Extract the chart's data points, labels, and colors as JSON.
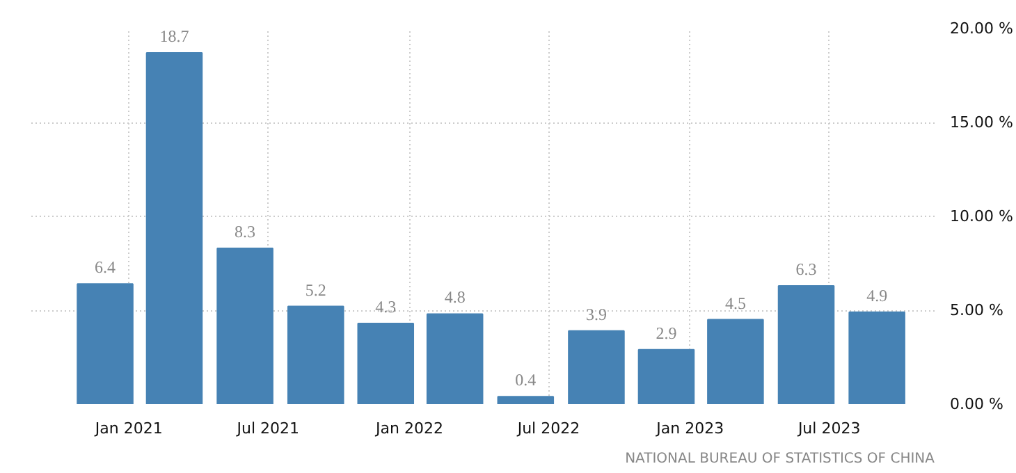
{
  "chart_data": {
    "type": "bar",
    "x": [
      "2020-12",
      "2021-03",
      "2021-06",
      "2021-09",
      "2021-12",
      "2022-03",
      "2022-06",
      "2022-09",
      "2022-12",
      "2023-03",
      "2023-06",
      "2023-09"
    ],
    "values": [
      6.4,
      18.7,
      8.3,
      5.2,
      4.3,
      4.8,
      0.4,
      3.9,
      2.9,
      4.5,
      6.3,
      4.9
    ],
    "color": "#4682b4",
    "data_labels": true,
    "xlim": [
      "2020-08-27",
      "2023-11-15"
    ],
    "xticks": [
      {
        "value": "2021-01",
        "label": "Jan 2021"
      },
      {
        "value": "2021-07",
        "label": "Jul 2021"
      },
      {
        "value": "2022-01",
        "label": "Jan 2022"
      },
      {
        "value": "2022-07",
        "label": "Jul 2022"
      },
      {
        "value": "2023-01",
        "label": "Jan 2023"
      },
      {
        "value": "2023-07",
        "label": "Jul 2023"
      }
    ],
    "ylim": [
      0,
      20
    ],
    "yticks": [
      {
        "value": 0,
        "label": "0.00 %"
      },
      {
        "value": 5,
        "label": "5.00 %"
      },
      {
        "value": 10,
        "label": "10.00 %"
      },
      {
        "value": 15,
        "label": "15.00 %"
      },
      {
        "value": 20,
        "label": "20.00 %"
      }
    ],
    "grid": true,
    "annotations": [
      "NATIONAL BUREAU OF STATISTICS OF CHINA"
    ]
  }
}
